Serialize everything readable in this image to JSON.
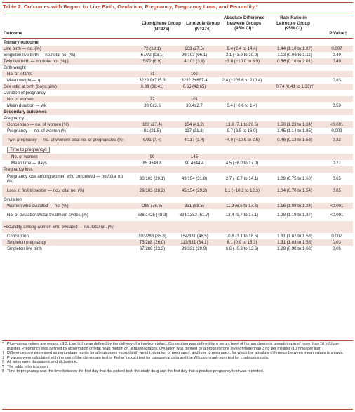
{
  "title": "Table 2. Outcomes with Regard to Live Birth, Ovulation, Pregnancy, Pregnancy Loss, and Fecundity.*",
  "headers": {
    "outcome": "Outcome",
    "clomiphene": [
      "Clomiphene Group",
      "(N=376)"
    ],
    "letrozole": [
      "Letrozole Group",
      "(N=374)"
    ],
    "absdiff": [
      "Absolute Difference",
      "between Groups",
      "(95% CI)†"
    ],
    "rate": [
      "Rate Ratio in",
      "Letrozole Group",
      "(95% CI)"
    ],
    "p": "P Value‡"
  },
  "rows": [
    {
      "type": "section",
      "label": "Primary outcome"
    },
    {
      "label": "Live birth — no. (%)",
      "c": "72 (19.1)",
      "l": "103 (27.5)",
      "d": "8.4 (2.4 to 14.4)",
      "r": "1.44 (1.10 to 1.87)",
      "p": "0.007",
      "shade": true
    },
    {
      "label": "Singleton live birth — no./total no. (%)",
      "c": "67/72 (93.1)",
      "l": "99/103 (96.1)",
      "d": "3.1 (−3.9 to 10.0)",
      "r": "1.03 (0.96 to 1.11)",
      "p": "0.49"
    },
    {
      "label": "Twin live birth — no./total no. (%)§",
      "c": "5/72 (6.9)",
      "l": "4/103 (3.9)",
      "d": "−3.0 (−10.0 to 3.9)",
      "r": "0.56 (0.16 to 2.01)",
      "p": "0.49",
      "shade": true
    },
    {
      "label": "Birth weight",
      "c": "",
      "l": "",
      "d": "",
      "r": "",
      "p": ""
    },
    {
      "label": "No. of infants",
      "c": "71",
      "l": "102",
      "d": "",
      "r": "",
      "p": "",
      "indent": 1,
      "shade": true
    },
    {
      "label": "Mean weight — g",
      "c": "3229.9±715.3",
      "l": "3232.3±657.4",
      "d": "2.4 (−205.6 to 210.4)",
      "r": "",
      "p": "0.83",
      "indent": 1
    },
    {
      "label": "Sex ratio at birth (boys:girls)",
      "c": "0.88 (36:41)",
      "l": "0.65 (42:65)",
      "d": "",
      "r": "0.74 (0.41 to 1.33)¶",
      "p": "",
      "shade": true
    },
    {
      "label": "Duration of pregnancy",
      "c": "",
      "l": "",
      "d": "",
      "r": "",
      "p": ""
    },
    {
      "label": "No. of women",
      "c": "72",
      "l": "101",
      "d": "",
      "r": "",
      "p": "",
      "indent": 1,
      "shade": true
    },
    {
      "label": "Mean duration — wk",
      "c": "38.0±3.6",
      "l": "38.4±2.7",
      "d": "0.4 (−0.6 to 1.4)",
      "r": "",
      "p": "0.59",
      "indent": 1
    },
    {
      "type": "section",
      "label": "Secondary outcomes",
      "shade": true
    },
    {
      "label": "Pregnancy",
      "c": "",
      "l": "",
      "d": "",
      "r": "",
      "p": ""
    },
    {
      "label": "Conception — no. of women (%)",
      "c": "103 (27.4)",
      "l": "154 (41.2)",
      "d": "13.8 (7.1 to 20.5)",
      "r": "1.50 (1.23 to 1.84)",
      "p": "<0.001",
      "indent": 1,
      "shade": true
    },
    {
      "label": "Pregnancy — no. of women (%)",
      "c": "81 (21.5)",
      "l": "117 (31.3)",
      "d": "9.7 (3.5 to 16.0)",
      "r": "1.45 (1.14 to 1.85)",
      "p": "0.003",
      "indent": 1
    },
    {
      "label": "Twin pregnancy — no. of women/ total no. of pregnancies (%)",
      "c": "6/81 (7.4)",
      "l": "4/117 (3.4)",
      "d": "−4.0 (−10.6 to 2.6)",
      "r": "0.46 (0.13 to 1.58)",
      "p": "0.32",
      "indent": 1,
      "shade": true,
      "tall": true
    },
    {
      "label": "Time to pregnancy‖",
      "c": "",
      "l": "",
      "d": "",
      "r": "",
      "p": "",
      "indent": 1,
      "box": true,
      "blockh": true
    },
    {
      "label": "No. of women",
      "c": "90",
      "l": "145",
      "d": "",
      "r": "",
      "p": "",
      "indent": 2,
      "shade": true
    },
    {
      "label": "Mean time — days",
      "c": "85.9±48.8",
      "l": "90.4±44.4",
      "d": "4.5 (−8.0 to 17.0)",
      "r": "",
      "p": "0.27",
      "indent": 2
    },
    {
      "label": "Pregnancy loss",
      "c": "",
      "l": "",
      "d": "",
      "r": "",
      "p": "",
      "shade": true
    },
    {
      "label": "Pregnancy loss among women who conceived — no./total no. (%)",
      "c": "30/103 (29.1)",
      "l": "49/154 (31.8)",
      "d": "2.7 (−8.7 to 14.1)",
      "r": "1.09 (0.75 to 1.60)",
      "p": "0.65",
      "indent": 1,
      "tall": true
    },
    {
      "label": "Loss in first trimester — no./ total no. (%)",
      "c": "29/103 (28.2)",
      "l": "45/154 (29.2)",
      "d": "1.1 (−10.2 to 12.3)",
      "r": "1.04 (0.70 to 1.54)",
      "p": "0.85",
      "indent": 1,
      "shade": true,
      "tall": true
    },
    {
      "label": "Ovulation",
      "c": "",
      "l": "",
      "d": "",
      "r": "",
      "p": ""
    },
    {
      "label": "Women who ovulated — no. (%)",
      "c": "288 (76.6)",
      "l": "331 (88.5)",
      "d": "11.9 (6.5 to 17.3)",
      "r": "1.16 (1.08 to 1.24)",
      "p": "<0.001",
      "indent": 1,
      "shade": true
    },
    {
      "label": "No. of ovulations/total treatment cycles (%)",
      "c": "688/1425 (48.3)",
      "l": "834/1352 (61.7)",
      "d": "13.4 (9.7 to 17.1)",
      "r": "1.28 (1.19 to 1.37)",
      "p": "<0.001",
      "indent": 1,
      "tall": true
    },
    {
      "label": "Fecundity among women who ovulated — no./total no. (%)",
      "c": "",
      "l": "",
      "d": "",
      "r": "",
      "p": "",
      "shade": true,
      "tall": true
    },
    {
      "label": "Conception",
      "c": "103/288 (35.8)",
      "l": "154/331 (46.5)",
      "d": "10.8 (3.1 to 18.5)",
      "r": "1.31 (1.07 to 1.58)",
      "p": "0.007",
      "indent": 1
    },
    {
      "label": "Singleton pregnancy",
      "c": "75/288 (26.0)",
      "l": "113/331 (34.1)",
      "d": "8.1 (0.9 to 15.3)",
      "r": "1.31 (1.03 to 1.58)",
      "p": "0.03",
      "indent": 1,
      "shade": true
    },
    {
      "label": "Singleton live birth",
      "c": "67/288 (23.3)",
      "l": "99/331 (29.9)",
      "d": "6.6 (−0.3 to 13.6)",
      "r": "1.29 (0.98 to 1.68)",
      "p": "0.06",
      "indent": 1
    }
  ],
  "footnotes": [
    {
      "mark": "*",
      "text": "Plus–minus values are means ±SD. Live birth was defined by the delivery of a live-born infant. Conception was defined by a serum level of human chorionic gonadotropin of more than 10 mIU per milliliter. Pregnancy was defined by observation of fetal heart motion on ultrasonography. Ovulation was defined by a progesterone level of more than 3 ng per milliliter (10 nmol per liter)."
    },
    {
      "mark": "†",
      "text": "Differences are expressed as percentage points for all outcomes except birth weight, duration of pregnancy, and time to pregnancy, for which the absolute difference between mean values is shown."
    },
    {
      "mark": "‡",
      "text": "P values were calculated with the use of the chi-square test or Fisher's exact test for categorical data and the Wilcoxon rank-sum test for continuous data."
    },
    {
      "mark": "§",
      "text": "All twins were diamnionic and dichorionic."
    },
    {
      "mark": "¶",
      "text": "The odds ratio is shown."
    },
    {
      "mark": "‖",
      "text": "Time to pregnancy was the time between the first day that the patient took the study drug and the first day that a positive pregnancy test was recorded."
    }
  ]
}
